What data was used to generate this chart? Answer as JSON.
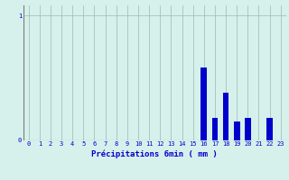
{
  "xlabel": "Précipitations 6min ( mm )",
  "hours": [
    0,
    1,
    2,
    3,
    4,
    5,
    6,
    7,
    8,
    9,
    10,
    11,
    12,
    13,
    14,
    15,
    16,
    17,
    18,
    19,
    20,
    21,
    22,
    23
  ],
  "values": [
    0,
    0,
    0,
    0,
    0,
    0,
    0,
    0,
    0,
    0,
    0,
    0,
    0,
    0,
    0,
    0,
    0.58,
    0.18,
    0.38,
    0.15,
    0.18,
    0,
    0.18,
    0
  ],
  "bar_color": "#0000cc",
  "bg_color": "#d6f0ec",
  "plot_bg": "#d6f0ec",
  "grid_color": "#9ab8b4",
  "ylim": [
    0,
    1.08
  ],
  "yticks": [
    0,
    1
  ],
  "xlim": [
    -0.5,
    23.5
  ],
  "tick_fontsize": 5.0,
  "xlabel_fontsize": 6.5
}
